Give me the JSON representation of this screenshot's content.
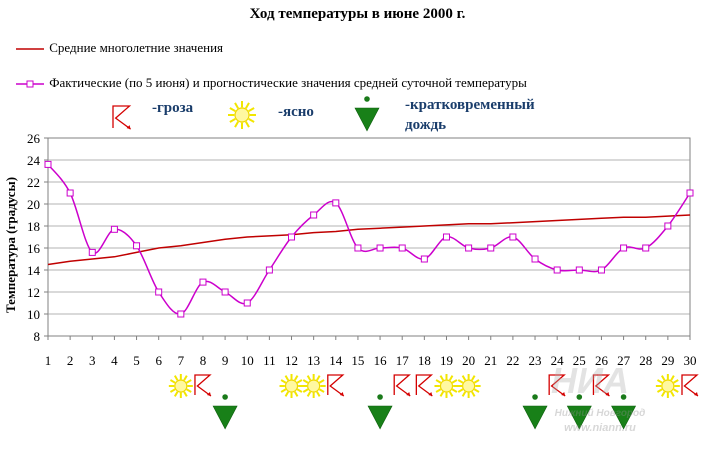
{
  "chart_data": {
    "type": "line",
    "title": "Ход температуры в июне 2000 г.",
    "xlabel": "",
    "ylabel": "Температура (градусы)",
    "xlim": [
      1,
      30
    ],
    "ylim": [
      8,
      26
    ],
    "y_ticks": [
      8,
      10,
      12,
      14,
      16,
      18,
      20,
      22,
      24,
      26
    ],
    "grid": "horizontal",
    "legend_placement": "top-left",
    "categories": [
      "1",
      "2",
      "3",
      "4",
      "5",
      "6",
      "7",
      "8",
      "9",
      "10",
      "11",
      "12",
      "13",
      "14",
      "15",
      "16",
      "17",
      "18",
      "19",
      "20",
      "21",
      "22",
      "23",
      "24",
      "25",
      "26",
      "27",
      "28",
      "29",
      "30"
    ],
    "series": [
      {
        "name": "Средние многолетние  значения",
        "color": "#c00000",
        "marker": "none",
        "values": [
          14.5,
          14.8,
          15.0,
          15.2,
          15.6,
          16.0,
          16.2,
          16.5,
          16.8,
          17.0,
          17.1,
          17.2,
          17.4,
          17.5,
          17.7,
          17.8,
          17.9,
          18.0,
          18.1,
          18.2,
          18.2,
          18.3,
          18.4,
          18.5,
          18.6,
          18.7,
          18.8,
          18.8,
          18.9,
          19.0
        ]
      },
      {
        "name": "Фактические (по 5 июня) и прогностические значения средней суточной температуры",
        "color": "#cc00cc",
        "marker": "square",
        "values": [
          23.6,
          21.0,
          15.6,
          17.7,
          16.2,
          12.0,
          10.0,
          12.9,
          12.0,
          11.0,
          14.0,
          17.0,
          19.0,
          20.1,
          16.0,
          16.0,
          16.0,
          15.0,
          17.0,
          16.0,
          16.0,
          17.0,
          15.0,
          14.0,
          14.0,
          14.0,
          16.0,
          16.0,
          18.0,
          21.0
        ]
      }
    ],
    "weather_key": [
      {
        "icon": "thunderstorm-icon",
        "label": "-гроза"
      },
      {
        "icon": "sun-icon",
        "label": "-ясно"
      },
      {
        "icon": "rain-shower-icon",
        "label": "-кратковременный дождь"
      }
    ],
    "weather_by_day": [
      {
        "day": 7,
        "icon": "sun-icon"
      },
      {
        "day": 8,
        "icon": "thunderstorm-icon"
      },
      {
        "day": 9,
        "icon": "rain-shower-icon"
      },
      {
        "day": 12,
        "icon": "sun-icon"
      },
      {
        "day": 13,
        "icon": "sun-icon"
      },
      {
        "day": 14,
        "icon": "thunderstorm-icon"
      },
      {
        "day": 16,
        "icon": "rain-shower-icon"
      },
      {
        "day": 17,
        "icon": "thunderstorm-icon"
      },
      {
        "day": 18,
        "icon": "thunderstorm-icon"
      },
      {
        "day": 19,
        "icon": "sun-icon"
      },
      {
        "day": 20,
        "icon": "sun-icon"
      },
      {
        "day": 23,
        "icon": "rain-shower-icon"
      },
      {
        "day": 24,
        "icon": "thunderstorm-icon"
      },
      {
        "day": 25,
        "icon": "rain-shower-icon"
      },
      {
        "day": 26,
        "icon": "thunderstorm-icon"
      },
      {
        "day": 27,
        "icon": "rain-shower-icon"
      },
      {
        "day": 29,
        "icon": "sun-icon"
      },
      {
        "day": 30,
        "icon": "thunderstorm-icon"
      }
    ]
  },
  "watermark": {
    "lines": [
      "НИА",
      "Нижний Новгород",
      "www.niann.ru"
    ]
  }
}
